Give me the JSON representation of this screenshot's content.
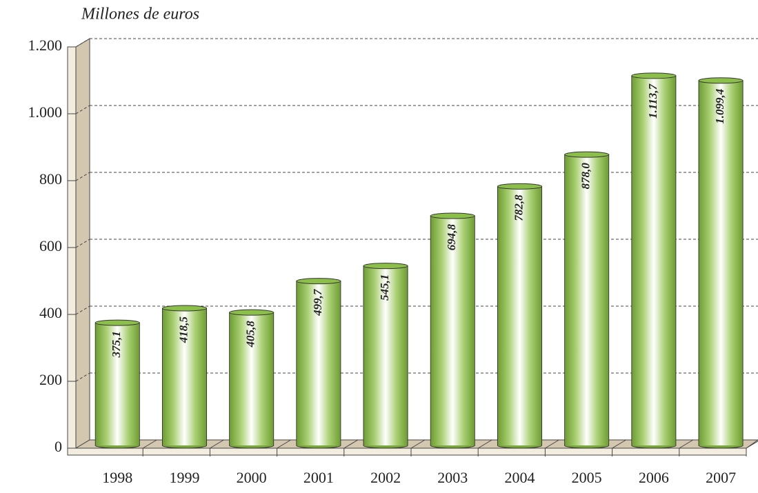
{
  "chart_data": {
    "type": "bar",
    "y_label": "Millones de euros",
    "categories": [
      "1998",
      "1999",
      "2000",
      "2001",
      "2002",
      "2003",
      "2004",
      "2005",
      "2006",
      "2007"
    ],
    "values": [
      375.1,
      418.5,
      405.8,
      499.7,
      545.1,
      694.8,
      782.8,
      878.0,
      1113.7,
      1099.4
    ],
    "value_labels": [
      "375,1",
      "418,5",
      "405,8",
      "499,7",
      "545,1",
      "694,8",
      "782,8",
      "878,0",
      "1.113,7",
      "1.099,4"
    ],
    "color": "#8cbf4a",
    "ylim": [
      0,
      1200
    ],
    "yticks": [
      0,
      200,
      400,
      600,
      800,
      {
        "value": 1000,
        "label": "1.000"
      },
      {
        "value": 1200,
        "label": "1.200"
      }
    ],
    "grid": true
  }
}
